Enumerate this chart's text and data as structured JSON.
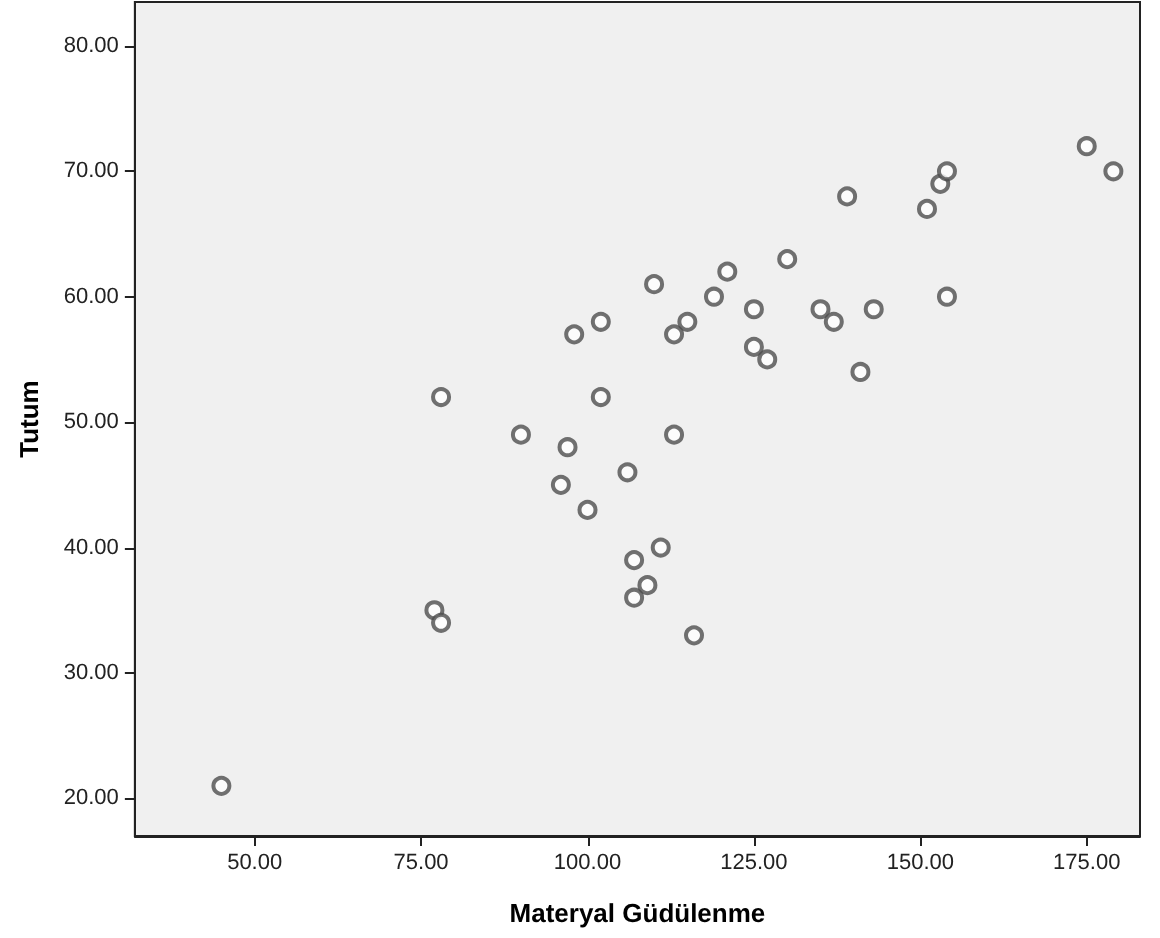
{
  "chart_data": {
    "type": "scatter",
    "xlabel": "Materyal Güdülenme",
    "ylabel": "Tutum",
    "x": [
      45,
      77,
      78,
      78,
      90,
      96,
      97,
      98,
      100,
      102,
      102,
      106,
      107,
      107,
      109,
      111,
      116,
      113,
      110,
      113,
      115,
      119,
      121,
      125,
      125,
      127,
      130,
      135,
      137,
      139,
      141,
      143,
      151,
      153,
      154,
      154,
      175,
      179
    ],
    "series": [
      {
        "color": "#4d4d4d",
        "values": [
          21,
          35,
          34,
          52,
          49,
          45,
          48,
          57,
          43,
          58,
          52,
          46,
          39,
          36,
          37,
          40,
          33,
          49,
          61,
          57,
          58,
          60,
          62,
          59,
          56,
          55,
          63,
          59,
          58,
          68,
          54,
          59,
          67,
          69,
          70,
          60,
          72,
          70
        ]
      }
    ],
    "xlim": [
      32,
      183
    ],
    "ylim": [
      17,
      83.5
    ],
    "xticks": [
      {
        "value": 50,
        "label": "50.00"
      },
      {
        "value": 75,
        "label": "75.00"
      },
      {
        "value": 100,
        "label": "100.00"
      },
      {
        "value": 125,
        "label": "125.00"
      },
      {
        "value": 150,
        "label": "150.00"
      },
      {
        "value": 175,
        "label": "175.00"
      }
    ],
    "yticks": [
      {
        "value": 20,
        "label": "20.00"
      },
      {
        "value": 30,
        "label": "30.00"
      },
      {
        "value": 40,
        "label": "40.00"
      },
      {
        "value": 50,
        "label": "50.00"
      },
      {
        "value": 60,
        "label": "60.00"
      },
      {
        "value": 70,
        "label": "70.00"
      },
      {
        "value": 80,
        "label": "80.00"
      }
    ],
    "marker": "circle",
    "grid": false
  }
}
